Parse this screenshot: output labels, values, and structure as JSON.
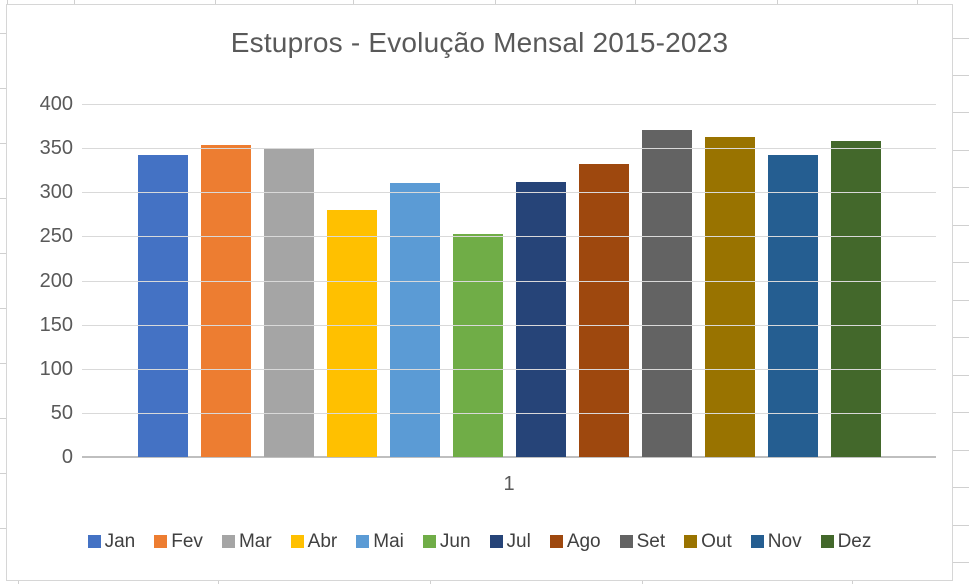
{
  "chart_data": {
    "type": "bar",
    "title": "Estupros - Evolução Mensal 2015-2023",
    "categories": [
      "1"
    ],
    "series": [
      {
        "name": "Jan",
        "values": [
          342
        ],
        "color": "#4472C4"
      },
      {
        "name": "Fev",
        "values": [
          353
        ],
        "color": "#ED7D31"
      },
      {
        "name": "Mar",
        "values": [
          349
        ],
        "color": "#A5A5A5"
      },
      {
        "name": "Abr",
        "values": [
          280
        ],
        "color": "#FFC000"
      },
      {
        "name": "Mai",
        "values": [
          310
        ],
        "color": "#5B9BD5"
      },
      {
        "name": "Jun",
        "values": [
          253
        ],
        "color": "#70AD47"
      },
      {
        "name": "Jul",
        "values": [
          312
        ],
        "color": "#264478"
      },
      {
        "name": "Ago",
        "values": [
          332
        ],
        "color": "#9E480E"
      },
      {
        "name": "Set",
        "values": [
          370
        ],
        "color": "#636363"
      },
      {
        "name": "Out",
        "values": [
          363
        ],
        "color": "#997300"
      },
      {
        "name": "Nov",
        "values": [
          342
        ],
        "color": "#255E91"
      },
      {
        "name": "Dez",
        "values": [
          358
        ],
        "color": "#43682B"
      }
    ],
    "xlabel": "",
    "ylabel": "",
    "ylim": [
      0,
      400
    ],
    "yticks": [
      0,
      50,
      100,
      150,
      200,
      250,
      300,
      350,
      400
    ],
    "grid": true,
    "legend_position": "bottom",
    "colors": {
      "title_text": "#595959",
      "axis_text": "#595959",
      "legend_text": "#404040",
      "gridline": "#D9D9D9",
      "axis_line": "#BFBFBF",
      "chart_border": "#D6D6D6",
      "sheet_gridline": "#D0D0D0"
    }
  }
}
